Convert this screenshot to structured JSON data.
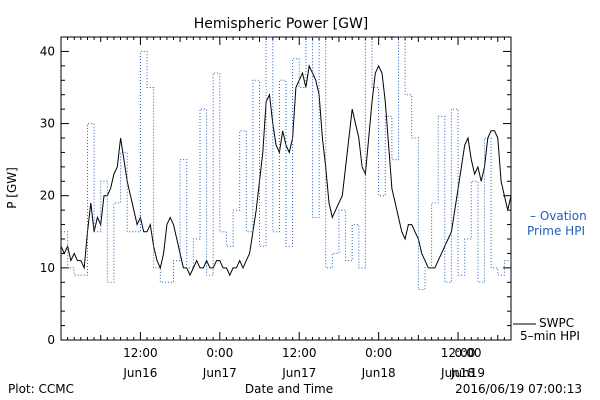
{
  "chart_data": {
    "type": "line",
    "title": "Hemispheric Power [GW]",
    "xlabel": "Date and Time",
    "ylabel": "P [GW]",
    "ylim": [
      0,
      42
    ],
    "y_ticks": [
      0,
      10,
      20,
      30,
      40
    ],
    "x_range_hours": [
      0,
      68
    ],
    "x_tick_labels": [
      {
        "hour": 12,
        "time": "12:00",
        "date": "Jun16"
      },
      {
        "hour": 24,
        "time": "0:00",
        "date": "Jun17"
      },
      {
        "hour": 36,
        "time": "12:00",
        "date": "Jun17"
      },
      {
        "hour": 48,
        "time": "0:00",
        "date": "Jun18"
      },
      {
        "hour": 60,
        "time": "12:00",
        "date": "Jun18"
      },
      {
        "hour": 72,
        "time": "0:00",
        "date": "Jun19"
      }
    ],
    "series": [
      {
        "name": "SWPC 5-min HPI",
        "color": "#000000",
        "style": "solid",
        "points": [
          [
            0,
            13
          ],
          [
            0.5,
            12
          ],
          [
            1,
            13
          ],
          [
            1.5,
            11
          ],
          [
            2,
            12
          ],
          [
            2.5,
            11
          ],
          [
            3,
            11
          ],
          [
            3.5,
            10
          ],
          [
            4,
            15
          ],
          [
            4.5,
            19
          ],
          [
            5,
            15
          ],
          [
            5.5,
            17
          ],
          [
            6,
            16
          ],
          [
            6.5,
            20
          ],
          [
            7,
            20
          ],
          [
            7.5,
            21
          ],
          [
            8,
            23
          ],
          [
            8.5,
            24
          ],
          [
            9,
            28
          ],
          [
            9.5,
            25
          ],
          [
            10,
            22
          ],
          [
            10.5,
            20
          ],
          [
            11,
            18
          ],
          [
            11.5,
            16
          ],
          [
            12,
            17
          ],
          [
            12.5,
            15
          ],
          [
            13,
            15
          ],
          [
            13.5,
            16
          ],
          [
            14,
            13
          ],
          [
            14.5,
            11
          ],
          [
            15,
            10
          ],
          [
            15.5,
            12
          ],
          [
            16,
            16
          ],
          [
            16.5,
            17
          ],
          [
            17,
            16
          ],
          [
            17.5,
            14
          ],
          [
            18,
            12
          ],
          [
            18.5,
            10
          ],
          [
            19,
            10
          ],
          [
            19.5,
            9
          ],
          [
            20,
            10
          ],
          [
            20.5,
            11
          ],
          [
            21,
            10
          ],
          [
            21.5,
            10
          ],
          [
            22,
            11
          ],
          [
            22.5,
            10
          ],
          [
            23,
            10
          ],
          [
            23.5,
            11
          ],
          [
            24,
            11
          ],
          [
            24.5,
            10
          ],
          [
            25,
            10
          ],
          [
            25.5,
            9
          ],
          [
            26,
            10
          ],
          [
            26.5,
            10
          ],
          [
            27,
            11
          ],
          [
            27.5,
            10
          ],
          [
            28,
            11
          ],
          [
            28.5,
            12
          ],
          [
            29,
            15
          ],
          [
            29.5,
            18
          ],
          [
            30,
            22
          ],
          [
            30.5,
            26
          ],
          [
            31,
            33
          ],
          [
            31.5,
            34
          ],
          [
            32,
            30
          ],
          [
            32.5,
            27
          ],
          [
            33,
            26
          ],
          [
            33.5,
            29
          ],
          [
            34,
            27
          ],
          [
            34.5,
            26
          ],
          [
            35,
            28
          ],
          [
            35.5,
            35
          ],
          [
            36,
            36
          ],
          [
            36.5,
            37
          ],
          [
            37,
            35
          ],
          [
            37.5,
            38
          ],
          [
            38,
            37
          ],
          [
            38.5,
            36
          ],
          [
            39,
            34
          ],
          [
            39.5,
            28
          ],
          [
            40,
            24
          ],
          [
            40.5,
            19
          ],
          [
            41,
            17
          ],
          [
            41.5,
            18
          ],
          [
            42,
            19
          ],
          [
            42.5,
            20
          ],
          [
            43,
            24
          ],
          [
            43.5,
            28
          ],
          [
            44,
            32
          ],
          [
            44.5,
            30
          ],
          [
            45,
            28
          ],
          [
            45.5,
            24
          ],
          [
            46,
            23
          ],
          [
            46.5,
            28
          ],
          [
            47,
            33
          ],
          [
            47.5,
            37
          ],
          [
            48,
            38
          ],
          [
            48.5,
            37
          ],
          [
            49,
            33
          ],
          [
            49.5,
            27
          ],
          [
            50,
            21
          ],
          [
            50.5,
            19
          ],
          [
            51,
            17
          ],
          [
            51.5,
            15
          ],
          [
            52,
            14
          ],
          [
            52.5,
            16
          ],
          [
            53,
            16
          ],
          [
            53.5,
            15
          ],
          [
            54,
            14
          ],
          [
            54.5,
            12
          ],
          [
            55,
            11
          ],
          [
            55.5,
            10
          ],
          [
            56,
            10
          ],
          [
            56.5,
            10
          ],
          [
            57,
            11
          ],
          [
            57.5,
            12
          ],
          [
            58,
            13
          ],
          [
            58.5,
            14
          ],
          [
            59,
            15
          ],
          [
            59.5,
            18
          ],
          [
            60,
            21
          ],
          [
            60.5,
            24
          ],
          [
            61,
            27
          ],
          [
            61.5,
            28
          ],
          [
            62,
            25
          ],
          [
            62.5,
            23
          ],
          [
            63,
            24
          ],
          [
            63.5,
            22
          ],
          [
            64,
            24
          ],
          [
            64.5,
            28
          ],
          [
            65,
            29
          ],
          [
            65.5,
            29
          ],
          [
            66,
            28
          ],
          [
            66.5,
            22
          ],
          [
            67,
            20
          ],
          [
            67.5,
            18
          ],
          [
            68,
            20
          ]
        ]
      },
      {
        "name": "Ovation Prime HPI",
        "color": "#1f5fbf",
        "style": "dotted",
        "points": [
          [
            0,
            15
          ],
          [
            1,
            15
          ],
          [
            1,
            10
          ],
          [
            2,
            10
          ],
          [
            2,
            9
          ],
          [
            4,
            9
          ],
          [
            4,
            30
          ],
          [
            5,
            30
          ],
          [
            5,
            15
          ],
          [
            6,
            15
          ],
          [
            6,
            22
          ],
          [
            7,
            22
          ],
          [
            7,
            8
          ],
          [
            8,
            8
          ],
          [
            8,
            19
          ],
          [
            9,
            19
          ],
          [
            9,
            26
          ],
          [
            10,
            26
          ],
          [
            10,
            15
          ],
          [
            12,
            15
          ],
          [
            12,
            40
          ],
          [
            13,
            40
          ],
          [
            13,
            35
          ],
          [
            14,
            35
          ],
          [
            14,
            10
          ],
          [
            15,
            10
          ],
          [
            15,
            8
          ],
          [
            17,
            8
          ],
          [
            17,
            11
          ],
          [
            18,
            11
          ],
          [
            18,
            25
          ],
          [
            19,
            25
          ],
          [
            19,
            10
          ],
          [
            20,
            10
          ],
          [
            20,
            14
          ],
          [
            21,
            14
          ],
          [
            21,
            32
          ],
          [
            22,
            32
          ],
          [
            22,
            9
          ],
          [
            23,
            9
          ],
          [
            23,
            37
          ],
          [
            24,
            37
          ],
          [
            24,
            15
          ],
          [
            25,
            15
          ],
          [
            25,
            13
          ],
          [
            26,
            13
          ],
          [
            26,
            18
          ],
          [
            27,
            18
          ],
          [
            27,
            29
          ],
          [
            28,
            29
          ],
          [
            28,
            15
          ],
          [
            29,
            15
          ],
          [
            29,
            36
          ],
          [
            30,
            36
          ],
          [
            30,
            13
          ],
          [
            31,
            13
          ],
          [
            31,
            42
          ],
          [
            32,
            42
          ],
          [
            32,
            15
          ],
          [
            33,
            15
          ],
          [
            33,
            36
          ],
          [
            34,
            36
          ],
          [
            34,
            13
          ],
          [
            35,
            13
          ],
          [
            35,
            39
          ],
          [
            36,
            39
          ],
          [
            36,
            35
          ],
          [
            37,
            35
          ],
          [
            37,
            42
          ],
          [
            38,
            42
          ],
          [
            38,
            17
          ],
          [
            39,
            17
          ],
          [
            39,
            42
          ],
          [
            40,
            42
          ],
          [
            40,
            10
          ],
          [
            41,
            10
          ],
          [
            41,
            12
          ],
          [
            42,
            12
          ],
          [
            42,
            18
          ],
          [
            43,
            18
          ],
          [
            43,
            11
          ],
          [
            44,
            11
          ],
          [
            44,
            16
          ],
          [
            45,
            16
          ],
          [
            45,
            10
          ],
          [
            46,
            10
          ],
          [
            46,
            42
          ],
          [
            47,
            42
          ],
          [
            47,
            35
          ],
          [
            48,
            35
          ],
          [
            48,
            20
          ],
          [
            49,
            20
          ],
          [
            49,
            31
          ],
          [
            50,
            31
          ],
          [
            50,
            25
          ],
          [
            51,
            25
          ],
          [
            51,
            42
          ],
          [
            52,
            42
          ],
          [
            52,
            34
          ],
          [
            53,
            34
          ],
          [
            53,
            28
          ],
          [
            54,
            28
          ],
          [
            54,
            7
          ],
          [
            55,
            7
          ],
          [
            55,
            10
          ],
          [
            56,
            10
          ],
          [
            56,
            19
          ],
          [
            57,
            19
          ],
          [
            57,
            31
          ],
          [
            58,
            31
          ],
          [
            58,
            8
          ],
          [
            59,
            8
          ],
          [
            59,
            32
          ],
          [
            60,
            32
          ],
          [
            60,
            9
          ],
          [
            61,
            9
          ],
          [
            61,
            14
          ],
          [
            62,
            14
          ],
          [
            62,
            22
          ],
          [
            63,
            22
          ],
          [
            63,
            8
          ],
          [
            64,
            8
          ],
          [
            64,
            28
          ],
          [
            65,
            28
          ],
          [
            65,
            10
          ],
          [
            66,
            10
          ],
          [
            66,
            9
          ],
          [
            67,
            9
          ],
          [
            67,
            11
          ],
          [
            68,
            11
          ]
        ]
      }
    ],
    "legend": [
      {
        "line1": "– Ovation",
        "line2": "Prime HPI",
        "color": "#1f5fbf"
      },
      {
        "line1": "SWPC",
        "line2": "5–min HPI",
        "color": "#000000"
      }
    ],
    "grid": false,
    "footer_left": "Plot: CCMC",
    "footer_right": "2016/06/19 07:00:13"
  }
}
